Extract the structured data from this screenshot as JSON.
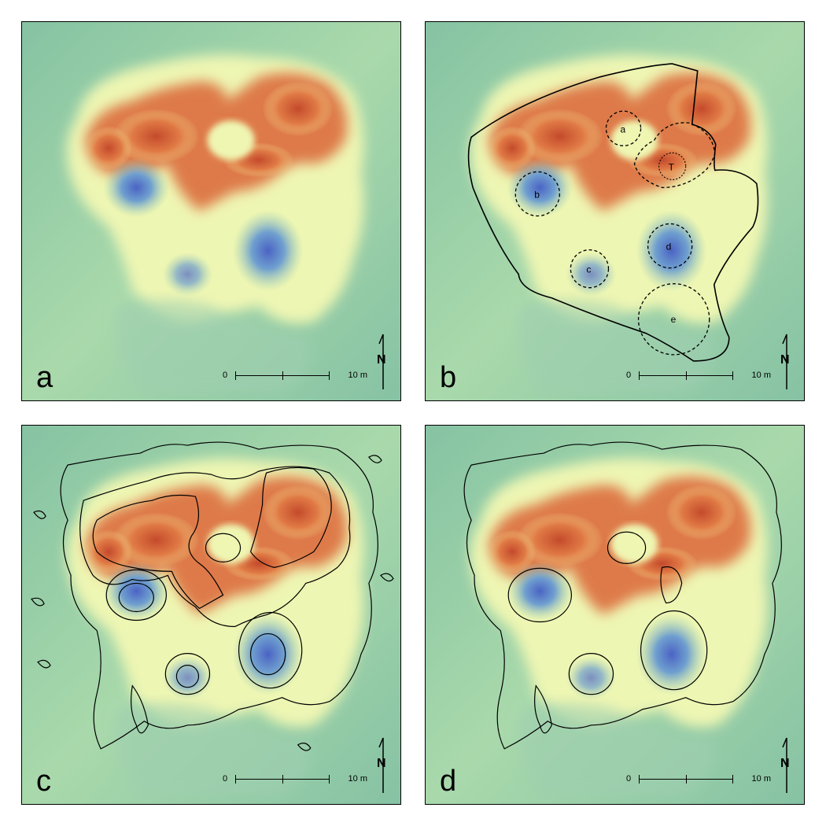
{
  "panels": [
    {
      "letter": "a",
      "overlay": "none"
    },
    {
      "letter": "b",
      "overlay": "features"
    },
    {
      "letter": "c",
      "overlay": "contours-full"
    },
    {
      "letter": "d",
      "overlay": "contours-simplified"
    }
  ],
  "north_label": "N",
  "scale": {
    "start": "0",
    "end": "10 m"
  },
  "features": [
    {
      "id": "a",
      "label": "a"
    },
    {
      "id": "T",
      "label": "T"
    },
    {
      "id": "b",
      "label": "b"
    },
    {
      "id": "d",
      "label": "d"
    },
    {
      "id": "c",
      "label": "c"
    },
    {
      "id": "e",
      "label": "e"
    }
  ],
  "colors": {
    "background": "#8fcaa4",
    "low": "#4a6fc4",
    "mid": "#f2f7b0",
    "high": "#c9482f"
  }
}
